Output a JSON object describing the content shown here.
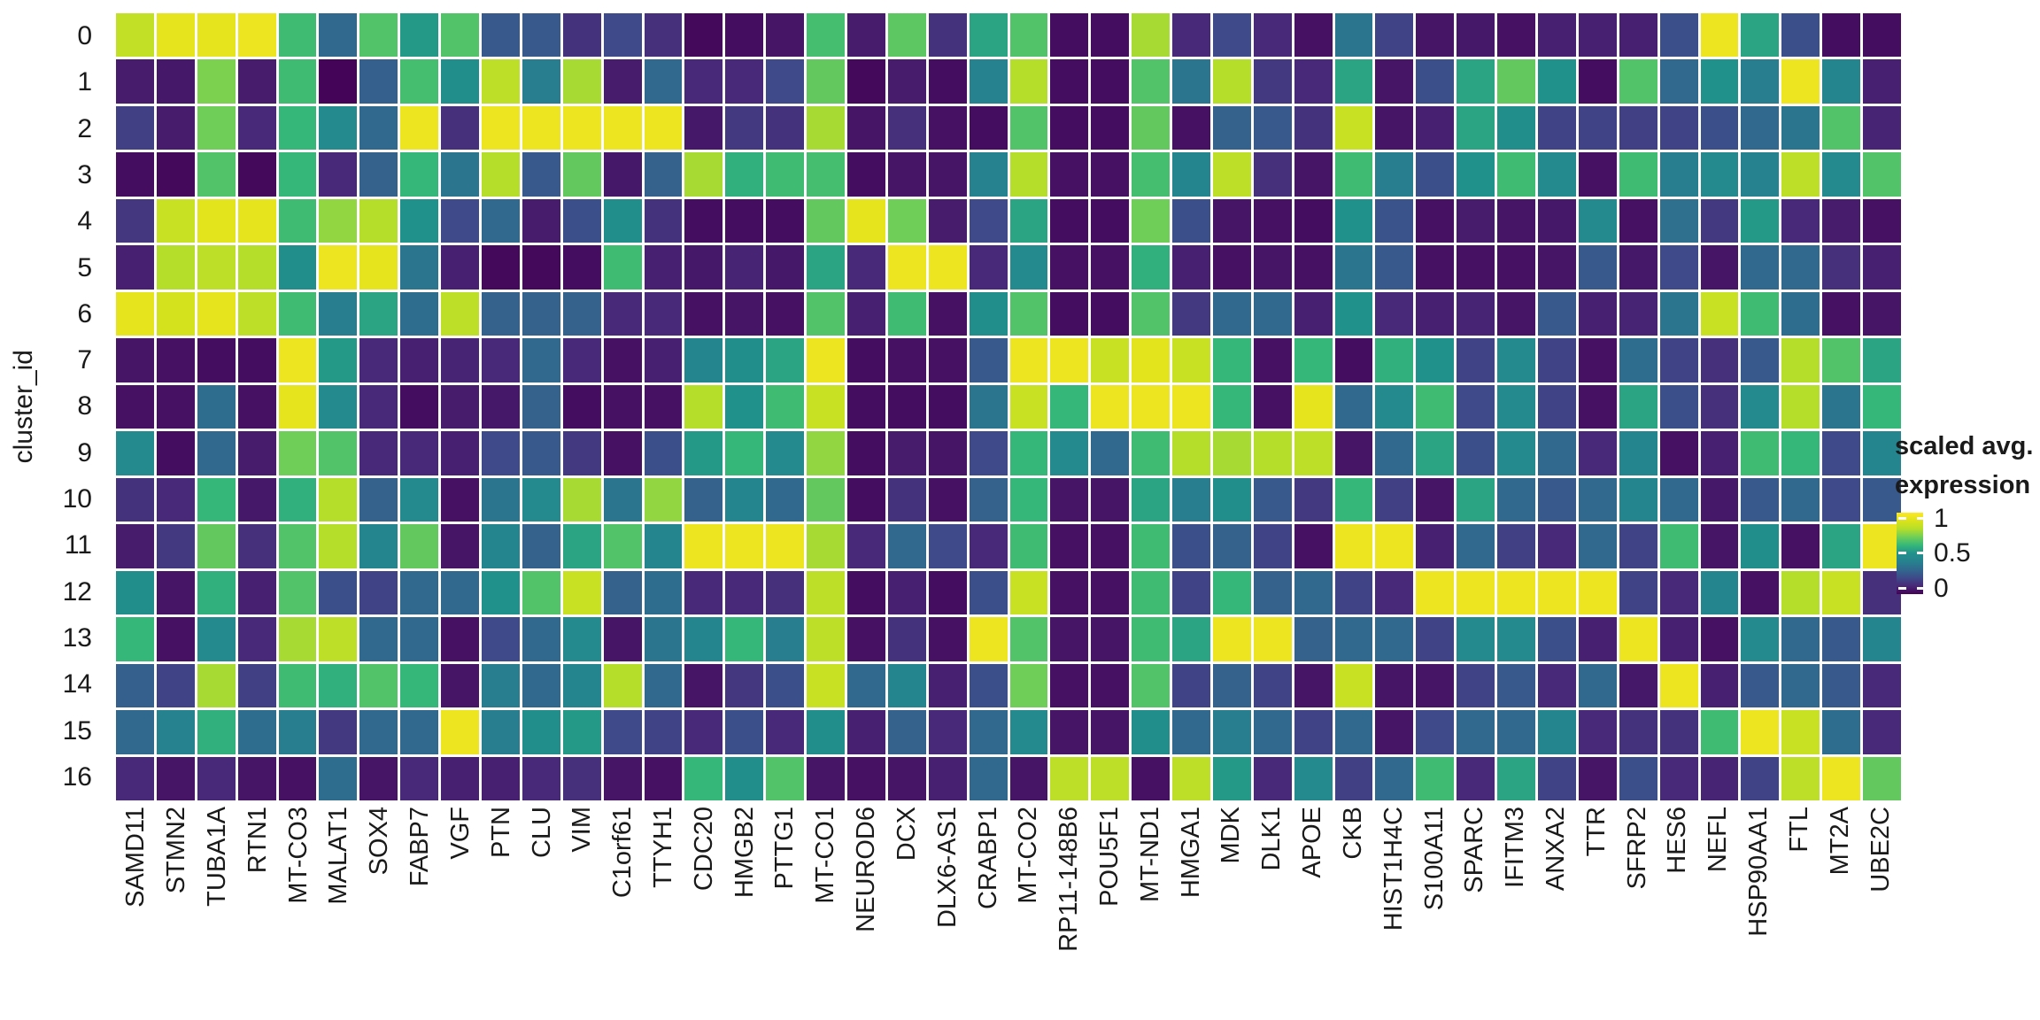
{
  "figure": {
    "type_note": "single-cell cluster marker gene heatmap",
    "background": "#ffffff",
    "text_color": "#1a1a1a"
  },
  "legend": {
    "title_line1": "scaled avg.",
    "title_line2": "expression",
    "ticks": [
      "1",
      "0.5",
      "0"
    ],
    "position": "right"
  },
  "chart_data": {
    "type": "heatmap",
    "title": "",
    "xlabel": "",
    "ylabel": "cluster_id",
    "colormap": "viridis",
    "legend_title": "scaled avg. expression",
    "value_range": [
      0,
      1
    ],
    "legend_tick_values": [
      1,
      0.5,
      0
    ],
    "grid_gap_color": "#ffffff",
    "rows": [
      "0",
      "1",
      "2",
      "3",
      "4",
      "5",
      "6",
      "7",
      "8",
      "9",
      "10",
      "11",
      "12",
      "13",
      "14",
      "15",
      "16"
    ],
    "columns": [
      "SAMD11",
      "STMN2",
      "TUBA1A",
      "RTN1",
      "MT-CO3",
      "MALAT1",
      "SOX4",
      "FABP7",
      "VGF",
      "PTN",
      "CLU",
      "VIM",
      "C1orf61",
      "TTYH1",
      "CDC20",
      "HMGB2",
      "PTTG1",
      "MT-CO1",
      "NEUROD6",
      "DCX",
      "DLX6-AS1",
      "CRABP1",
      "MT-CO2",
      "RP11-148B6",
      "POU5F1",
      "MT-ND1",
      "HMGA1",
      "MDK",
      "DLK1",
      "APOE",
      "CKB",
      "HIST1H4C",
      "S100A11",
      "SPARC",
      "IFITM3",
      "ANXA2",
      "TTR",
      "SFRP2",
      "HES6",
      "NEFL",
      "HSP90AA1",
      "FTL",
      "MT2A",
      "UBE2C"
    ],
    "values": [
      [
        0.83,
        0.93,
        0.93,
        0.95,
        0.62,
        0.3,
        0.65,
        0.52,
        0.65,
        0.25,
        0.25,
        0.13,
        0.2,
        0.12,
        0.02,
        0.03,
        0.05,
        0.63,
        0.07,
        0.67,
        0.13,
        0.55,
        0.65,
        0.03,
        0.03,
        0.78,
        0.1,
        0.2,
        0.1,
        0.04,
        0.35,
        0.18,
        0.05,
        0.06,
        0.04,
        0.08,
        0.08,
        0.08,
        0.22,
        0.95,
        0.55,
        0.22,
        0.03,
        0.03
      ],
      [
        0.07,
        0.06,
        0.72,
        0.07,
        0.62,
        0.01,
        0.27,
        0.63,
        0.48,
        0.82,
        0.38,
        0.78,
        0.07,
        0.3,
        0.1,
        0.1,
        0.2,
        0.68,
        0.02,
        0.07,
        0.03,
        0.4,
        0.8,
        0.03,
        0.03,
        0.65,
        0.35,
        0.8,
        0.15,
        0.1,
        0.55,
        0.05,
        0.22,
        0.55,
        0.68,
        0.5,
        0.03,
        0.65,
        0.3,
        0.5,
        0.38,
        0.95,
        0.42,
        0.08
      ],
      [
        0.17,
        0.07,
        0.7,
        0.1,
        0.6,
        0.45,
        0.3,
        0.95,
        0.12,
        0.95,
        0.95,
        0.95,
        0.95,
        0.95,
        0.06,
        0.15,
        0.13,
        0.78,
        0.05,
        0.12,
        0.04,
        0.03,
        0.65,
        0.03,
        0.03,
        0.68,
        0.04,
        0.28,
        0.25,
        0.13,
        0.85,
        0.05,
        0.08,
        0.55,
        0.48,
        0.18,
        0.18,
        0.17,
        0.18,
        0.22,
        0.3,
        0.35,
        0.65,
        0.09
      ],
      [
        0.03,
        0.02,
        0.65,
        0.02,
        0.6,
        0.1,
        0.28,
        0.6,
        0.35,
        0.8,
        0.25,
        0.68,
        0.06,
        0.28,
        0.78,
        0.58,
        0.62,
        0.63,
        0.03,
        0.05,
        0.05,
        0.4,
        0.8,
        0.04,
        0.04,
        0.63,
        0.42,
        0.82,
        0.12,
        0.05,
        0.62,
        0.38,
        0.22,
        0.5,
        0.62,
        0.45,
        0.04,
        0.62,
        0.38,
        0.45,
        0.4,
        0.82,
        0.45,
        0.65
      ],
      [
        0.14,
        0.85,
        0.92,
        0.93,
        0.62,
        0.75,
        0.8,
        0.5,
        0.2,
        0.3,
        0.07,
        0.22,
        0.48,
        0.13,
        0.03,
        0.03,
        0.03,
        0.68,
        0.93,
        0.7,
        0.07,
        0.2,
        0.55,
        0.03,
        0.03,
        0.7,
        0.22,
        0.05,
        0.04,
        0.03,
        0.5,
        0.23,
        0.04,
        0.07,
        0.05,
        0.06,
        0.45,
        0.04,
        0.33,
        0.15,
        0.52,
        0.1,
        0.07,
        0.04
      ],
      [
        0.08,
        0.8,
        0.82,
        0.8,
        0.48,
        0.95,
        0.93,
        0.35,
        0.08,
        0.02,
        0.02,
        0.03,
        0.62,
        0.08,
        0.06,
        0.09,
        0.06,
        0.55,
        0.1,
        0.95,
        0.95,
        0.1,
        0.45,
        0.04,
        0.04,
        0.58,
        0.08,
        0.04,
        0.05,
        0.04,
        0.35,
        0.25,
        0.04,
        0.04,
        0.04,
        0.05,
        0.25,
        0.06,
        0.2,
        0.05,
        0.3,
        0.3,
        0.12,
        0.08
      ],
      [
        0.93,
        0.88,
        0.93,
        0.82,
        0.62,
        0.38,
        0.55,
        0.32,
        0.82,
        0.28,
        0.28,
        0.28,
        0.1,
        0.1,
        0.04,
        0.05,
        0.04,
        0.65,
        0.08,
        0.62,
        0.04,
        0.48,
        0.65,
        0.03,
        0.03,
        0.65,
        0.15,
        0.3,
        0.3,
        0.08,
        0.5,
        0.1,
        0.08,
        0.09,
        0.05,
        0.25,
        0.08,
        0.09,
        0.35,
        0.85,
        0.62,
        0.32,
        0.04,
        0.05
      ],
      [
        0.05,
        0.04,
        0.03,
        0.03,
        0.95,
        0.52,
        0.1,
        0.08,
        0.09,
        0.1,
        0.3,
        0.1,
        0.04,
        0.08,
        0.42,
        0.48,
        0.55,
        0.95,
        0.03,
        0.04,
        0.04,
        0.25,
        0.95,
        0.95,
        0.85,
        0.92,
        0.85,
        0.6,
        0.04,
        0.6,
        0.03,
        0.58,
        0.5,
        0.18,
        0.45,
        0.18,
        0.04,
        0.32,
        0.18,
        0.12,
        0.25,
        0.8,
        0.65,
        0.55
      ],
      [
        0.04,
        0.04,
        0.32,
        0.04,
        0.93,
        0.45,
        0.1,
        0.03,
        0.07,
        0.06,
        0.28,
        0.03,
        0.04,
        0.04,
        0.8,
        0.5,
        0.62,
        0.85,
        0.03,
        0.03,
        0.03,
        0.35,
        0.85,
        0.6,
        0.95,
        0.95,
        0.95,
        0.6,
        0.04,
        0.93,
        0.3,
        0.45,
        0.62,
        0.2,
        0.45,
        0.18,
        0.04,
        0.55,
        0.22,
        0.12,
        0.45,
        0.8,
        0.35,
        0.6
      ],
      [
        0.45,
        0.03,
        0.3,
        0.07,
        0.7,
        0.65,
        0.1,
        0.1,
        0.08,
        0.2,
        0.25,
        0.15,
        0.04,
        0.22,
        0.52,
        0.6,
        0.45,
        0.75,
        0.03,
        0.07,
        0.05,
        0.2,
        0.6,
        0.45,
        0.3,
        0.62,
        0.8,
        0.78,
        0.8,
        0.82,
        0.05,
        0.3,
        0.55,
        0.22,
        0.45,
        0.3,
        0.1,
        0.42,
        0.04,
        0.08,
        0.62,
        0.6,
        0.2,
        0.42
      ],
      [
        0.13,
        0.1,
        0.6,
        0.06,
        0.58,
        0.8,
        0.28,
        0.45,
        0.04,
        0.35,
        0.45,
        0.78,
        0.35,
        0.75,
        0.28,
        0.42,
        0.3,
        0.68,
        0.03,
        0.13,
        0.04,
        0.28,
        0.6,
        0.05,
        0.05,
        0.55,
        0.38,
        0.48,
        0.25,
        0.15,
        0.6,
        0.17,
        0.05,
        0.55,
        0.3,
        0.25,
        0.3,
        0.42,
        0.3,
        0.06,
        0.25,
        0.3,
        0.2,
        0.25
      ],
      [
        0.07,
        0.15,
        0.68,
        0.12,
        0.65,
        0.8,
        0.42,
        0.68,
        0.05,
        0.42,
        0.28,
        0.55,
        0.65,
        0.42,
        0.95,
        0.95,
        0.95,
        0.78,
        0.1,
        0.3,
        0.2,
        0.1,
        0.62,
        0.04,
        0.04,
        0.62,
        0.22,
        0.28,
        0.18,
        0.04,
        0.95,
        0.95,
        0.08,
        0.3,
        0.17,
        0.1,
        0.3,
        0.18,
        0.62,
        0.05,
        0.48,
        0.04,
        0.55,
        0.95
      ],
      [
        0.48,
        0.05,
        0.58,
        0.08,
        0.65,
        0.22,
        0.18,
        0.3,
        0.3,
        0.5,
        0.65,
        0.85,
        0.28,
        0.32,
        0.1,
        0.1,
        0.12,
        0.82,
        0.03,
        0.08,
        0.03,
        0.22,
        0.85,
        0.04,
        0.04,
        0.62,
        0.18,
        0.6,
        0.28,
        0.3,
        0.18,
        0.1,
        0.95,
        0.95,
        0.95,
        0.95,
        0.95,
        0.18,
        0.1,
        0.42,
        0.04,
        0.8,
        0.85,
        0.12
      ],
      [
        0.6,
        0.04,
        0.45,
        0.1,
        0.78,
        0.82,
        0.3,
        0.3,
        0.04,
        0.2,
        0.3,
        0.45,
        0.05,
        0.35,
        0.42,
        0.6,
        0.38,
        0.82,
        0.04,
        0.13,
        0.04,
        0.95,
        0.65,
        0.05,
        0.05,
        0.62,
        0.55,
        0.95,
        0.95,
        0.28,
        0.3,
        0.3,
        0.18,
        0.45,
        0.45,
        0.22,
        0.08,
        0.95,
        0.08,
        0.04,
        0.45,
        0.3,
        0.25,
        0.42
      ],
      [
        0.27,
        0.18,
        0.78,
        0.17,
        0.62,
        0.58,
        0.65,
        0.6,
        0.05,
        0.38,
        0.3,
        0.42,
        0.8,
        0.3,
        0.05,
        0.14,
        0.22,
        0.85,
        0.3,
        0.42,
        0.08,
        0.22,
        0.7,
        0.04,
        0.04,
        0.65,
        0.18,
        0.28,
        0.18,
        0.05,
        0.85,
        0.05,
        0.05,
        0.18,
        0.25,
        0.1,
        0.3,
        0.06,
        0.95,
        0.08,
        0.25,
        0.3,
        0.25,
        0.1
      ],
      [
        0.3,
        0.4,
        0.58,
        0.32,
        0.38,
        0.15,
        0.3,
        0.3,
        0.95,
        0.38,
        0.48,
        0.52,
        0.2,
        0.18,
        0.1,
        0.22,
        0.1,
        0.48,
        0.08,
        0.28,
        0.1,
        0.3,
        0.45,
        0.05,
        0.05,
        0.48,
        0.3,
        0.38,
        0.3,
        0.18,
        0.3,
        0.05,
        0.2,
        0.3,
        0.3,
        0.42,
        0.1,
        0.13,
        0.13,
        0.62,
        0.95,
        0.85,
        0.32,
        0.1
      ],
      [
        0.1,
        0.05,
        0.1,
        0.05,
        0.04,
        0.32,
        0.05,
        0.1,
        0.08,
        0.08,
        0.1,
        0.12,
        0.05,
        0.04,
        0.6,
        0.48,
        0.65,
        0.05,
        0.04,
        0.05,
        0.08,
        0.3,
        0.05,
        0.82,
        0.82,
        0.04,
        0.82,
        0.52,
        0.1,
        0.45,
        0.17,
        0.3,
        0.62,
        0.1,
        0.55,
        0.18,
        0.05,
        0.22,
        0.1,
        0.09,
        0.18,
        0.82,
        0.95,
        0.68
      ]
    ]
  }
}
